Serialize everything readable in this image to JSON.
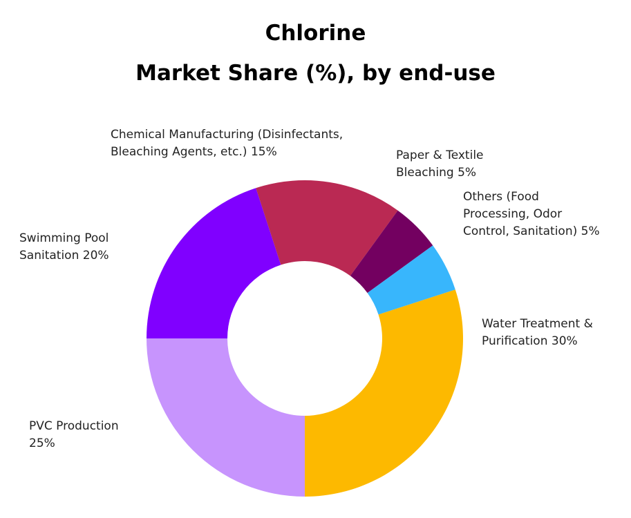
{
  "chart_data": {
    "type": "donut",
    "title": "Chlorine",
    "subtitle": "Market Share (%), by end-use",
    "categories": [
      "Water Treatment & Purification",
      "PVC Production",
      "Swimming Pool Sanitation",
      "Chemical Manufacturing (Disinfectants, Bleaching Agents, etc.)",
      "Paper & Textile Bleaching",
      "Others (Food Processing, Odor Control, Sanitation)"
    ],
    "values": [
      30,
      25,
      20,
      15,
      5,
      5
    ],
    "value_labels": [
      "30%",
      "25%",
      "20%",
      "15%",
      "5%",
      "5%"
    ],
    "colors": [
      "#fdb900",
      "#c794fd",
      "#8000ff",
      "#ba2953",
      "#730060",
      "#38b6fc"
    ]
  }
}
